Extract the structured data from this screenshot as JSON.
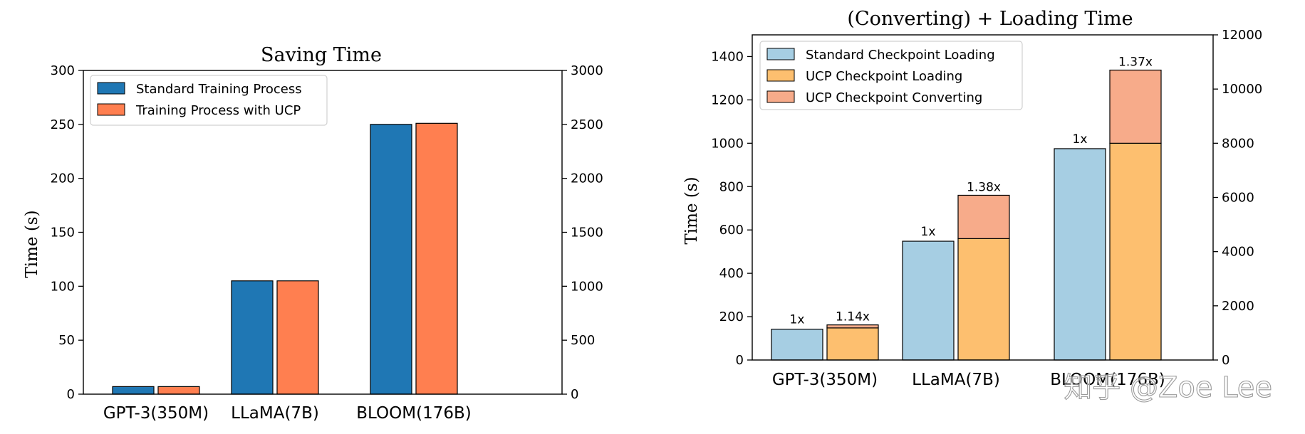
{
  "chart_data": [
    {
      "type": "bar",
      "title": "Saving Time",
      "ylabel": "Time (s)",
      "xlabel": "",
      "ylim": [
        0,
        300
      ],
      "yticks": [
        0,
        50,
        100,
        150,
        200,
        250,
        300
      ],
      "y2lim": [
        0,
        3000
      ],
      "y2ticks": [
        0,
        500,
        1000,
        1500,
        2000,
        2500,
        3000
      ],
      "categories": [
        "GPT-3(350M)",
        "LLaMA(7B)",
        "BLOOM(176B)"
      ],
      "axis_for_category": [
        "left",
        "left",
        "right"
      ],
      "series": [
        {
          "name": "Standard Training Process",
          "color": "#1f77b4",
          "values": [
            7,
            105,
            2500
          ]
        },
        {
          "name": "Training Process with UCP",
          "color": "#ff7f50",
          "values": [
            7,
            105,
            2510
          ]
        }
      ],
      "legend": "top-left"
    },
    {
      "type": "bar",
      "title": "(Converting) + Loading Time",
      "ylabel": "Time (s)",
      "xlabel": "",
      "ylim": [
        0,
        1500
      ],
      "yticks": [
        0,
        200,
        400,
        600,
        800,
        1000,
        1200,
        1400
      ],
      "y2lim": [
        0,
        12000
      ],
      "y2ticks": [
        0,
        2000,
        4000,
        6000,
        8000,
        10000,
        12000
      ],
      "categories": [
        "GPT-3(350M)",
        "LLaMA(7B)",
        "BLOOM(176B)"
      ],
      "axis_for_category": [
        "left",
        "left",
        "right"
      ],
      "series": [
        {
          "name": "Standard Checkpoint Loading",
          "color": "#a6cee3",
          "values": [
            142,
            548,
            7800
          ]
        },
        {
          "name": "UCP Checkpoint Loading",
          "color": "#fdbf6f",
          "values": [
            148,
            560,
            8000
          ]
        },
        {
          "name": "UCP Checkpoint Converting",
          "color": "#f7ab8a",
          "values": [
            14,
            200,
            2700
          ]
        }
      ],
      "bar_labels": [
        {
          "standard": "1x",
          "ucp": "1.14x"
        },
        {
          "standard": "1x",
          "ucp": "1.38x"
        },
        {
          "standard": "1x",
          "ucp": "1.37x"
        }
      ],
      "legend": "top-left"
    }
  ],
  "watermark": "知乎 @Zoe Lee"
}
